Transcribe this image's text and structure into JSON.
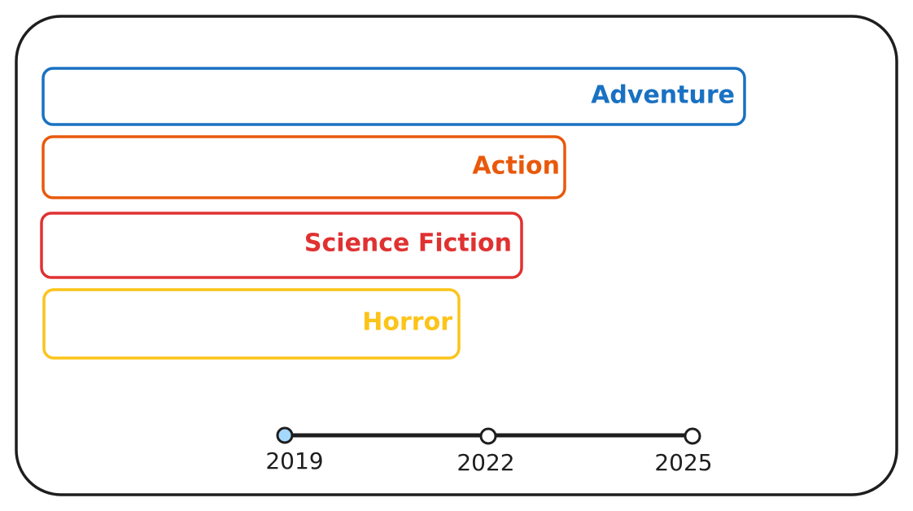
{
  "genres": [
    {
      "label": "Adventure"
    },
    {
      "label": "Action"
    },
    {
      "label": "Science Fiction"
    },
    {
      "label": "Horror"
    }
  ],
  "timeline": {
    "ticks": [
      "2019",
      "2022",
      "2025"
    ]
  }
}
